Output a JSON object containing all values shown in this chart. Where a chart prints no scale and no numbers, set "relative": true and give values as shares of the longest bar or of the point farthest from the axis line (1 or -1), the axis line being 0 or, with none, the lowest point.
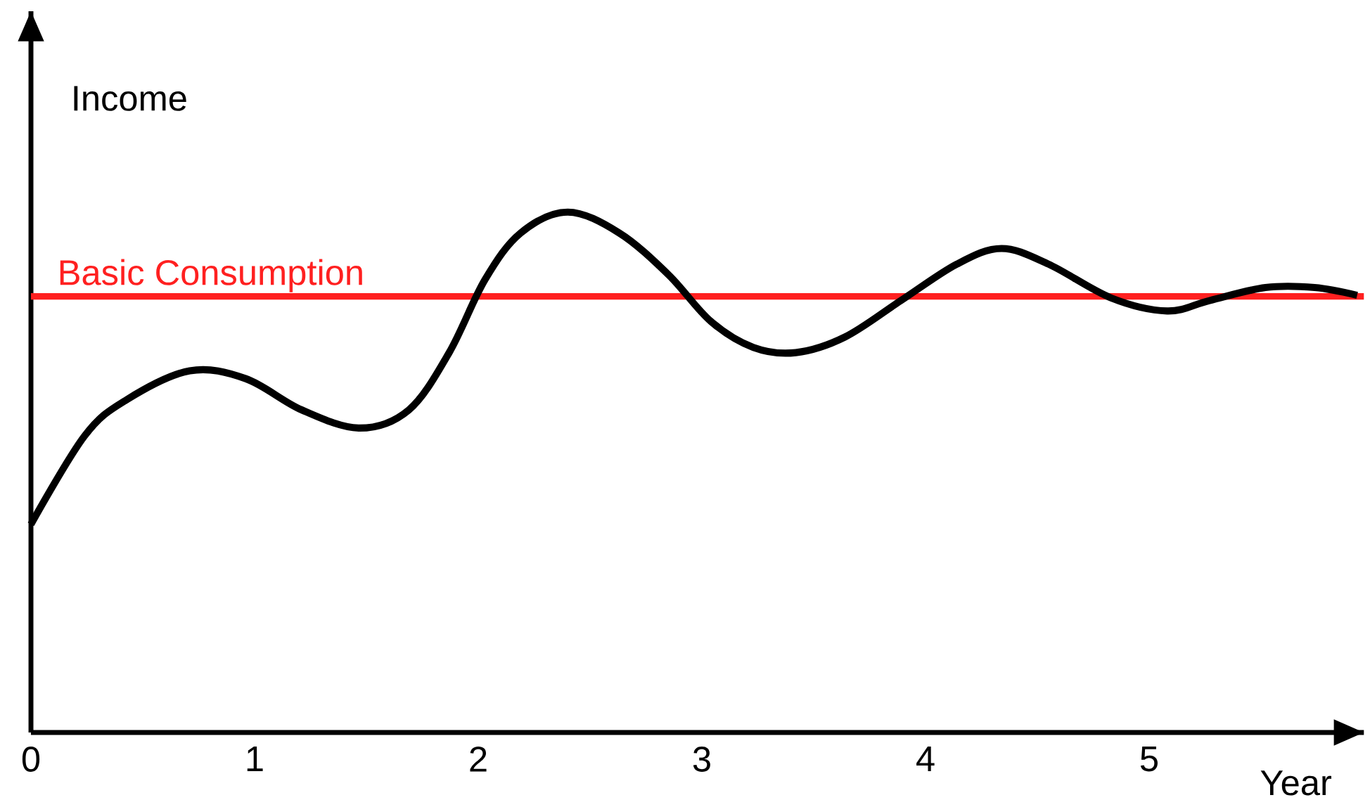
{
  "chart_data": {
    "type": "line",
    "relative": true,
    "xlabel": "Year",
    "ylabel": "Income",
    "x": [
      0,
      0.24,
      0.43,
      0.71,
      0.96,
      1.21,
      1.47,
      1.69,
      1.87,
      2.03,
      2.19,
      2.4,
      2.63,
      2.85,
      3.04,
      3.23,
      3.42,
      3.64,
      3.89,
      4.14,
      4.34,
      4.55,
      4.83,
      5.08,
      5.27,
      5.52,
      5.74,
      5.93
    ],
    "series": [
      {
        "color": "#000000",
        "values": [
          0.4,
          0.57,
          0.64,
          0.695,
          0.68,
          0.62,
          0.585,
          0.62,
          0.73,
          0.87,
          0.96,
          1.0,
          0.96,
          0.88,
          0.79,
          0.74,
          0.73,
          0.76,
          0.83,
          0.9,
          0.93,
          0.9,
          0.835,
          0.81,
          0.83,
          0.855,
          0.855,
          0.84
        ]
      }
    ],
    "xlim": [
      0,
      5.96
    ],
    "xticks": [
      0,
      1,
      2,
      3,
      4,
      5
    ],
    "ref_lines": [
      {
        "axis": "y",
        "value": 0.838,
        "label": "Basic Consumption",
        "color": "#ff2020"
      }
    ],
    "grid": false
  }
}
